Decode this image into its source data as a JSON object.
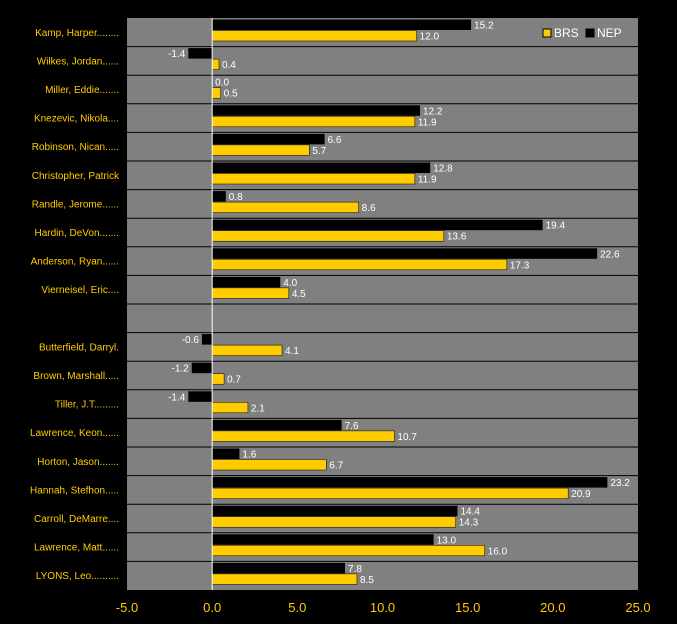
{
  "chart_data": {
    "type": "bar",
    "orientation": "horizontal",
    "categories": [
      "Kamp, Harper........",
      "Wilkes, Jordan......",
      "Miller, Eddie.......",
      "Knezevic, Nikola....",
      "Robinson, Nican.....",
      "Christopher, Patrick",
      "Randle, Jerome......",
      "Hardin, DeVon.......",
      "Anderson, Ryan......",
      "Vierneisel, Eric....",
      "",
      "Butterfield, Darryl.",
      "Brown, Marshall.....",
      "Tiller, J.T.........",
      "Lawrence, Keon......",
      "Horton, Jason.......",
      "Hannah, Stefhon.....",
      "Carroll, DeMarre....",
      "Lawrence, Matt......",
      "LYONS, Leo.........."
    ],
    "series": [
      {
        "name": "NEP",
        "color": "#000000",
        "values": [
          15.2,
          -1.4,
          0.0,
          12.2,
          6.6,
          12.8,
          0.8,
          19.4,
          22.6,
          4.0,
          null,
          -0.6,
          -1.2,
          -1.4,
          7.6,
          1.6,
          23.2,
          14.4,
          13.0,
          7.8
        ],
        "labels": [
          "15.2",
          "-1.4",
          "0.0",
          "12.2",
          "6.6",
          "12.8",
          "0.8",
          "19.4",
          "22.6",
          "4.0",
          "",
          "-0.6",
          "-1.2",
          "-1.4",
          "7.6",
          "1.6",
          "23.2",
          "14.4",
          "13.0",
          "7.8"
        ]
      },
      {
        "name": "BRS",
        "color": "#FFCC00",
        "values": [
          12.0,
          0.4,
          0.5,
          11.9,
          5.7,
          11.9,
          8.6,
          13.6,
          17.3,
          4.5,
          null,
          4.1,
          0.7,
          2.1,
          10.7,
          6.7,
          20.9,
          14.3,
          16.0,
          8.5
        ],
        "labels": [
          "12.0",
          "0.4",
          "0.5",
          "11.9",
          "5.7",
          "11.9",
          "8.6",
          "13.6",
          "17.3",
          "4.5",
          "",
          "4.1",
          "0.7",
          "2.1",
          "10.7",
          "6.7",
          "20.9",
          "14.3",
          "16.0",
          "8.5"
        ]
      }
    ],
    "xlim": [
      -5.0,
      25.0
    ],
    "xticks": [
      "-5.0",
      "0.0",
      "5.0",
      "10.0",
      "15.0",
      "20.0",
      "25.0"
    ],
    "title": "",
    "xlabel": "",
    "ylabel": "",
    "legend": {
      "position": "top-right",
      "order": [
        "BRS",
        "NEP"
      ]
    },
    "grid": "horizontal-row-separators",
    "colors": {
      "background": "#000000",
      "plot_area": "#808080",
      "text": "#FFCC00",
      "value_label": "#FFFFFF",
      "row_separator": "#000000",
      "zero_line": "#FFFFFF"
    }
  }
}
